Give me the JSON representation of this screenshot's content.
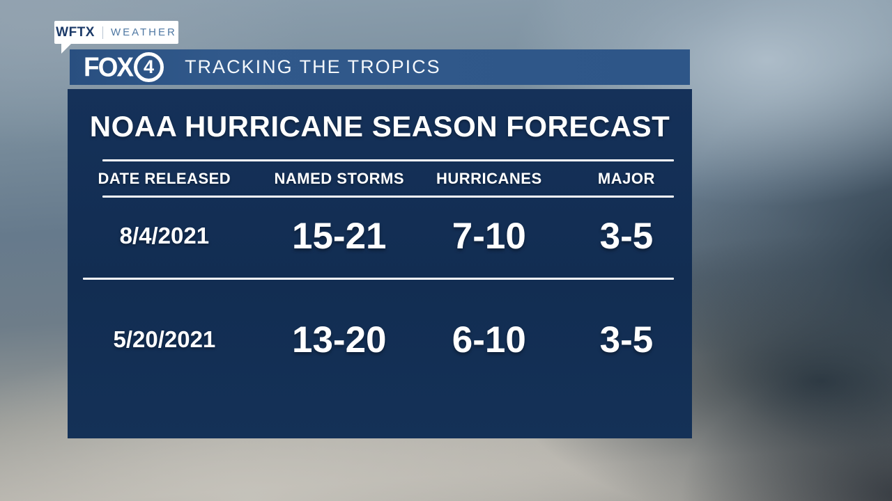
{
  "station_badge": {
    "station": "WFTX",
    "department": "WEATHER"
  },
  "top_bar": {
    "logo_text": "FOX",
    "logo_channel": "4",
    "title": "TRACKING THE TROPICS"
  },
  "chart_data": {
    "type": "table",
    "title": "NOAA HURRICANE SEASON FORECAST",
    "columns": [
      "DATE RELEASED",
      "NAMED STORMS",
      "HURRICANES",
      "MAJOR"
    ],
    "rows": [
      [
        "8/4/2021",
        "15-21",
        "7-10",
        "3-5"
      ],
      [
        "5/20/2021",
        "13-20",
        "6-10",
        "3-5"
      ]
    ]
  },
  "colors": {
    "top_bar_blue": "#2e5688",
    "panel_navy": "#13305a",
    "badge_station_text": "#1c3a68",
    "badge_weather_text": "#4f78a3",
    "table_text": "#ffffff"
  }
}
